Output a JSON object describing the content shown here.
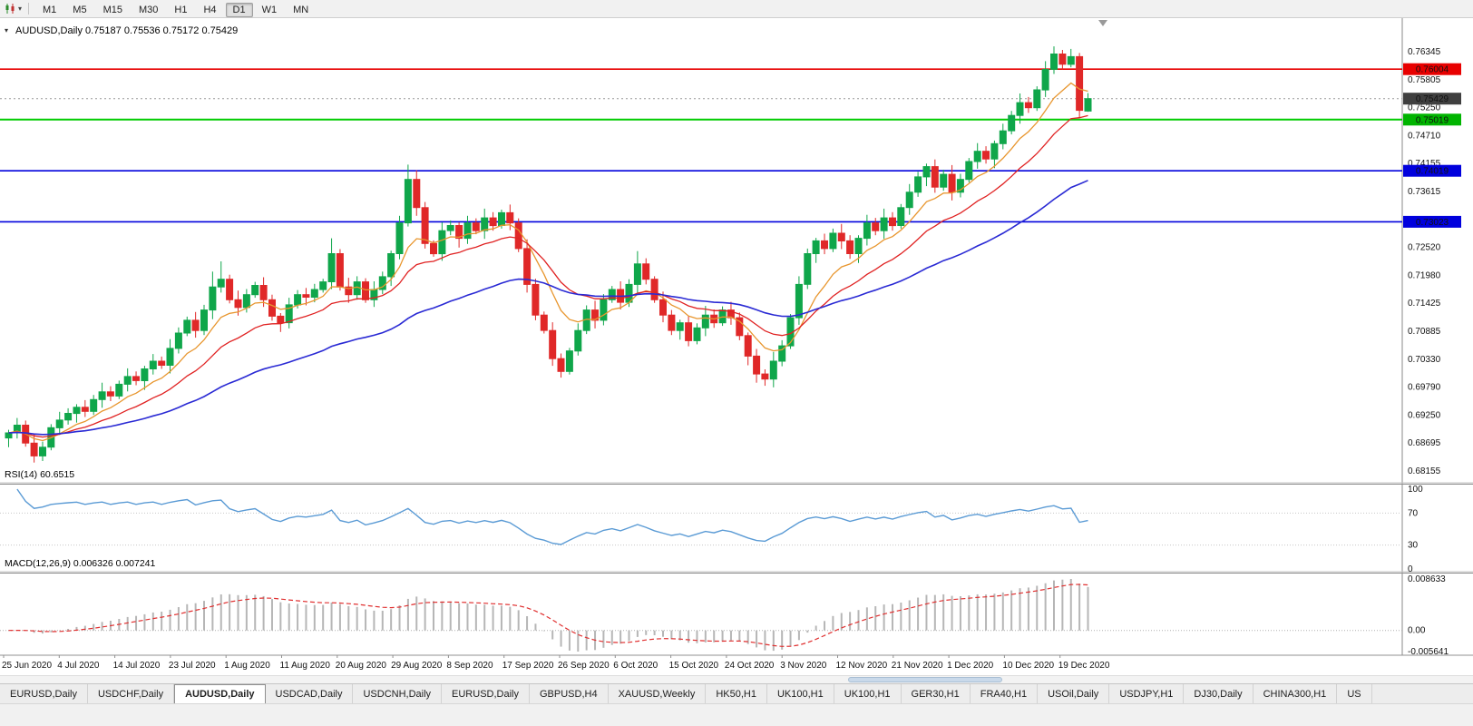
{
  "toolbar": {
    "timeframes": [
      "M1",
      "M5",
      "M15",
      "M30",
      "H1",
      "H4",
      "D1",
      "W1",
      "MN"
    ],
    "active_timeframe": "D1"
  },
  "chart": {
    "header": "AUDUSD,Daily 0.75187 0.75536 0.75172 0.75429",
    "symbol": "AUDUSD,Daily",
    "open": "0.75187",
    "high": "0.75536",
    "low": "0.75172",
    "close": "0.75429"
  },
  "price_axis": {
    "ticks": [
      "0.76345",
      "0.75805",
      "0.75250",
      "0.74710",
      "0.74155",
      "0.73615",
      "0.73080",
      "0.72520",
      "0.71980",
      "0.71425",
      "0.70885",
      "0.70330",
      "0.69790",
      "0.69250",
      "0.68695",
      "0.68155"
    ],
    "badges": [
      {
        "label": "0.76004",
        "price": 0.76004,
        "bg": "#e80000"
      },
      {
        "label": "0.75429",
        "price": 0.75429,
        "bg": "#3f3f3f"
      },
      {
        "label": "0.75019",
        "price": 0.75019,
        "bg": "#00b400"
      },
      {
        "label": "0.74019",
        "price": 0.74019,
        "bg": "#0000dd"
      },
      {
        "label": "0.73023",
        "price": 0.73023,
        "bg": "#0000dd"
      }
    ]
  },
  "hlines": [
    {
      "price": 0.76004,
      "color": "#e80000",
      "width": 1.6,
      "dash": null
    },
    {
      "price": 0.75019,
      "color": "#00cc00",
      "width": 2,
      "dash": null
    },
    {
      "price": 0.74019,
      "color": "#0000dd",
      "width": 1.6,
      "dash": null
    },
    {
      "price": 0.73023,
      "color": "#0000dd",
      "width": 1.6,
      "dash": null
    },
    {
      "price": 0.75429,
      "color": "#9a9a9a",
      "width": 1,
      "dash": "2 3"
    }
  ],
  "rsi_panel": {
    "text": "RSI(14) 60.6515",
    "label": "RSI(14)",
    "value": "60.6515",
    "levels": [
      "100",
      "70",
      "30",
      "0"
    ],
    "line_color": "#5b9bd5"
  },
  "macd_panel": {
    "text": "MACD(12,26,9) 0.006326 0.007241",
    "label": "MACD(12,26,9)",
    "macd_value": "0.006326",
    "signal_value": "0.007241",
    "axis": [
      "0.008633",
      "0.00",
      "-0.005641"
    ],
    "bar_color": "#b6b6b6",
    "signal_color": "#e03030"
  },
  "tabs": {
    "active_index": 2,
    "items": [
      "EURUSD,Daily",
      "USDCHF,Daily",
      "AUDUSD,Daily",
      "USDCAD,Daily",
      "USDCNH,Daily",
      "EURUSD,Daily",
      "GBPUSD,H4",
      "XAUUSD,Weekly",
      "HK50,H1",
      "UK100,H1",
      "UK100,H1",
      "GER30,H1",
      "FRA40,H1",
      "USOil,Daily",
      "USDJPY,H1",
      "DJ30,Daily",
      "CHINA300,H1",
      "US"
    ]
  },
  "chart_data": {
    "type": "candlestick",
    "symbol": "AUDUSD",
    "timeframe": "Daily",
    "ylim": [
      0.68155,
      0.76345
    ],
    "colors": {
      "up": "#0fa64a",
      "down": "#e02828"
    },
    "moving_averages": [
      {
        "period": 8,
        "color": "#e8962e"
      },
      {
        "period": 17,
        "color": "#e02222"
      },
      {
        "period": 45,
        "color": "#2a2ad4"
      }
    ],
    "rsi": {
      "period": 14,
      "last": "60.6515"
    },
    "macd": {
      "fast": 12,
      "slow": 26,
      "signal": 9,
      "last_macd": "0.006326",
      "last_signal": "0.007241"
    },
    "date_labels": [
      "25 Jun 2020",
      "4 Jul 2020",
      "14 Jul 2020",
      "23 Jul 2020",
      "1 Aug 2020",
      "11 Aug 2020",
      "20 Aug 2020",
      "29 Aug 2020",
      "8 Sep 2020",
      "17 Sep 2020",
      "26 Sep 2020",
      "6 Oct 2020",
      "15 Oct 2020",
      "24 Oct 2020",
      "3 Nov 2020",
      "12 Nov 2020",
      "21 Nov 2020",
      "1 Dec 2020",
      "10 Dec 2020",
      "19 Dec 2020"
    ],
    "candles": [
      [
        0.688,
        0.6896,
        0.6862,
        0.689
      ],
      [
        0.689,
        0.6919,
        0.6879,
        0.6905
      ],
      [
        0.6905,
        0.6914,
        0.6863,
        0.687
      ],
      [
        0.687,
        0.6888,
        0.6832,
        0.6845
      ],
      [
        0.6845,
        0.6873,
        0.6835,
        0.6862
      ],
      [
        0.6862,
        0.6907,
        0.6856,
        0.69
      ],
      [
        0.69,
        0.6931,
        0.6886,
        0.6915
      ],
      [
        0.6915,
        0.6938,
        0.6906,
        0.6928
      ],
      [
        0.6928,
        0.6946,
        0.691,
        0.694
      ],
      [
        0.694,
        0.6954,
        0.6921,
        0.6932
      ],
      [
        0.6932,
        0.6964,
        0.6925,
        0.6955
      ],
      [
        0.6955,
        0.6988,
        0.6939,
        0.697
      ],
      [
        0.697,
        0.6981,
        0.6952,
        0.6962
      ],
      [
        0.6962,
        0.6992,
        0.6956,
        0.6985
      ],
      [
        0.6985,
        0.7016,
        0.6971,
        0.7
      ],
      [
        0.7,
        0.701,
        0.6983,
        0.6992
      ],
      [
        0.6992,
        0.7021,
        0.6974,
        0.7015
      ],
      [
        0.7015,
        0.7044,
        0.7004,
        0.703
      ],
      [
        0.703,
        0.7039,
        0.7015,
        0.7022
      ],
      [
        0.7022,
        0.7073,
        0.7006,
        0.7055
      ],
      [
        0.7055,
        0.7096,
        0.7045,
        0.7085
      ],
      [
        0.7085,
        0.7117,
        0.7079,
        0.711
      ],
      [
        0.711,
        0.7126,
        0.7076,
        0.709
      ],
      [
        0.709,
        0.714,
        0.7081,
        0.713
      ],
      [
        0.713,
        0.7205,
        0.7112,
        0.7175
      ],
      [
        0.7175,
        0.7225,
        0.7164,
        0.719
      ],
      [
        0.719,
        0.7199,
        0.7143,
        0.715
      ],
      [
        0.715,
        0.7168,
        0.7119,
        0.7135
      ],
      [
        0.7135,
        0.7171,
        0.7125,
        0.716
      ],
      [
        0.716,
        0.7185,
        0.7154,
        0.7178
      ],
      [
        0.7178,
        0.7194,
        0.7136,
        0.715
      ],
      [
        0.715,
        0.716,
        0.7109,
        0.7118
      ],
      [
        0.7118,
        0.7124,
        0.7087,
        0.7105
      ],
      [
        0.7105,
        0.7154,
        0.7094,
        0.714
      ],
      [
        0.714,
        0.7169,
        0.7133,
        0.716
      ],
      [
        0.716,
        0.7173,
        0.7139,
        0.7155
      ],
      [
        0.7155,
        0.7181,
        0.7145,
        0.717
      ],
      [
        0.717,
        0.7191,
        0.7164,
        0.7185
      ],
      [
        0.7185,
        0.727,
        0.7171,
        0.724
      ],
      [
        0.724,
        0.7249,
        0.7168,
        0.7175
      ],
      [
        0.7175,
        0.7193,
        0.7144,
        0.716
      ],
      [
        0.716,
        0.7196,
        0.715,
        0.7185
      ],
      [
        0.7185,
        0.7192,
        0.7144,
        0.715
      ],
      [
        0.715,
        0.7186,
        0.7136,
        0.717
      ],
      [
        0.717,
        0.7205,
        0.7161,
        0.7195
      ],
      [
        0.7195,
        0.7246,
        0.7177,
        0.724
      ],
      [
        0.724,
        0.7314,
        0.7229,
        0.73
      ],
      [
        0.73,
        0.7414,
        0.7293,
        0.7385
      ],
      [
        0.7385,
        0.7403,
        0.7314,
        0.733
      ],
      [
        0.733,
        0.7341,
        0.725,
        0.726
      ],
      [
        0.726,
        0.7266,
        0.7234,
        0.724
      ],
      [
        0.724,
        0.7301,
        0.7226,
        0.7285
      ],
      [
        0.7285,
        0.7305,
        0.7276,
        0.7295
      ],
      [
        0.7295,
        0.7301,
        0.7252,
        0.727
      ],
      [
        0.727,
        0.7314,
        0.7259,
        0.73
      ],
      [
        0.73,
        0.7309,
        0.7278,
        0.7285
      ],
      [
        0.7285,
        0.7328,
        0.7269,
        0.731
      ],
      [
        0.731,
        0.7321,
        0.7285,
        0.7295
      ],
      [
        0.7295,
        0.7326,
        0.7289,
        0.732
      ],
      [
        0.732,
        0.7336,
        0.7286,
        0.73
      ],
      [
        0.73,
        0.7309,
        0.7243,
        0.725
      ],
      [
        0.725,
        0.7268,
        0.7164,
        0.718
      ],
      [
        0.718,
        0.7191,
        0.711,
        0.712
      ],
      [
        0.712,
        0.7127,
        0.7084,
        0.709
      ],
      [
        0.709,
        0.7106,
        0.7021,
        0.7035
      ],
      [
        0.7035,
        0.7045,
        0.6998,
        0.701
      ],
      [
        0.701,
        0.7056,
        0.7004,
        0.705
      ],
      [
        0.705,
        0.7104,
        0.7041,
        0.709
      ],
      [
        0.709,
        0.7139,
        0.7083,
        0.713
      ],
      [
        0.713,
        0.7148,
        0.7094,
        0.711
      ],
      [
        0.711,
        0.7161,
        0.71,
        0.715
      ],
      [
        0.715,
        0.7177,
        0.7144,
        0.717
      ],
      [
        0.717,
        0.7186,
        0.7131,
        0.7145
      ],
      [
        0.7145,
        0.719,
        0.7136,
        0.718
      ],
      [
        0.718,
        0.7245,
        0.7162,
        0.722
      ],
      [
        0.722,
        0.7231,
        0.718,
        0.719
      ],
      [
        0.719,
        0.7196,
        0.7144,
        0.715
      ],
      [
        0.715,
        0.7166,
        0.7106,
        0.712
      ],
      [
        0.712,
        0.713,
        0.7081,
        0.709
      ],
      [
        0.709,
        0.7111,
        0.7072,
        0.7105
      ],
      [
        0.7105,
        0.7119,
        0.7059,
        0.707
      ],
      [
        0.707,
        0.7104,
        0.7063,
        0.7095
      ],
      [
        0.7095,
        0.7138,
        0.7079,
        0.712
      ],
      [
        0.712,
        0.7131,
        0.7095,
        0.7105
      ],
      [
        0.7105,
        0.7137,
        0.7099,
        0.713
      ],
      [
        0.713,
        0.7146,
        0.7101,
        0.7115
      ],
      [
        0.7115,
        0.7125,
        0.7071,
        0.708
      ],
      [
        0.708,
        0.7086,
        0.7022,
        0.704
      ],
      [
        0.704,
        0.7054,
        0.6988,
        0.7005
      ],
      [
        0.7005,
        0.7014,
        0.6982,
        0.6995
      ],
      [
        0.6995,
        0.7048,
        0.6979,
        0.703
      ],
      [
        0.703,
        0.7071,
        0.702,
        0.706
      ],
      [
        0.706,
        0.7122,
        0.7054,
        0.7115
      ],
      [
        0.7115,
        0.7196,
        0.7101,
        0.718
      ],
      [
        0.718,
        0.725,
        0.7171,
        0.724
      ],
      [
        0.724,
        0.7271,
        0.7222,
        0.7265
      ],
      [
        0.7265,
        0.7279,
        0.7239,
        0.725
      ],
      [
        0.725,
        0.7289,
        0.7243,
        0.728
      ],
      [
        0.728,
        0.7298,
        0.7249,
        0.7265
      ],
      [
        0.7265,
        0.7276,
        0.723,
        0.724
      ],
      [
        0.724,
        0.7276,
        0.7222,
        0.727
      ],
      [
        0.727,
        0.7316,
        0.7256,
        0.73
      ],
      [
        0.73,
        0.731,
        0.7276,
        0.7285
      ],
      [
        0.7285,
        0.7328,
        0.7269,
        0.731
      ],
      [
        0.731,
        0.7321,
        0.7285,
        0.7295
      ],
      [
        0.7295,
        0.7337,
        0.7289,
        0.733
      ],
      [
        0.733,
        0.7376,
        0.7316,
        0.736
      ],
      [
        0.736,
        0.74,
        0.7351,
        0.739
      ],
      [
        0.739,
        0.7416,
        0.7372,
        0.741
      ],
      [
        0.741,
        0.7424,
        0.7359,
        0.737
      ],
      [
        0.737,
        0.7404,
        0.7363,
        0.7395
      ],
      [
        0.7395,
        0.7413,
        0.7344,
        0.736
      ],
      [
        0.736,
        0.7396,
        0.735,
        0.7385
      ],
      [
        0.7385,
        0.7427,
        0.7379,
        0.742
      ],
      [
        0.742,
        0.7456,
        0.7406,
        0.744
      ],
      [
        0.744,
        0.745,
        0.7416,
        0.7425
      ],
      [
        0.7425,
        0.7461,
        0.7407,
        0.7455
      ],
      [
        0.7455,
        0.7494,
        0.7444,
        0.748
      ],
      [
        0.748,
        0.7519,
        0.7473,
        0.751
      ],
      [
        0.751,
        0.7553,
        0.7494,
        0.7535
      ],
      [
        0.7535,
        0.7546,
        0.7515,
        0.7525
      ],
      [
        0.7525,
        0.7567,
        0.7519,
        0.756
      ],
      [
        0.756,
        0.7616,
        0.7546,
        0.76
      ],
      [
        0.76,
        0.7645,
        0.7591,
        0.763
      ],
      [
        0.763,
        0.7638,
        0.76,
        0.761
      ],
      [
        0.761,
        0.764,
        0.7604,
        0.7625
      ],
      [
        0.7625,
        0.7632,
        0.7505,
        0.752
      ],
      [
        0.75187,
        0.75536,
        0.75172,
        0.75429
      ]
    ]
  }
}
